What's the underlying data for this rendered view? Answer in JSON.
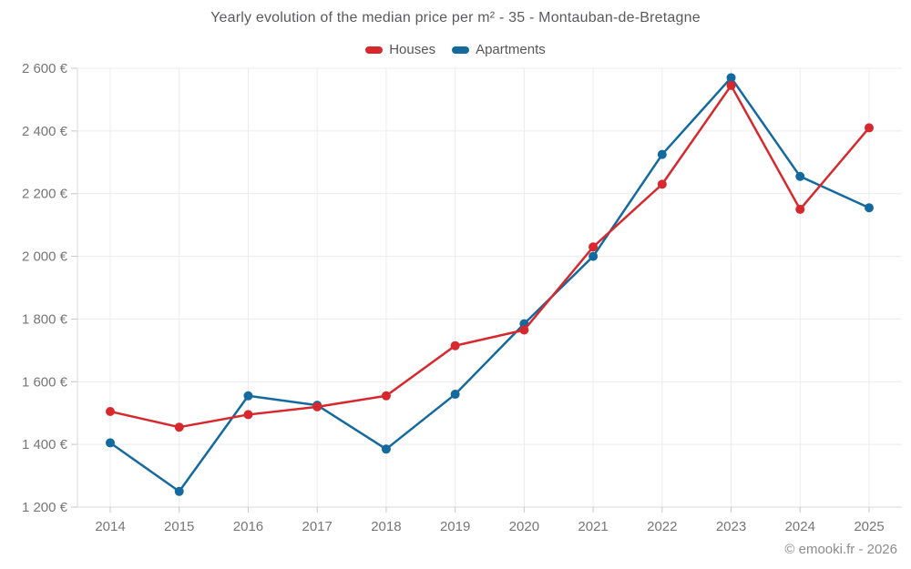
{
  "header": {
    "title": "Yearly evolution of the median price per m² - 35 - Montauban-de-Bretagne"
  },
  "footer": {
    "copyright": "© emooki.fr - 2026"
  },
  "colors": {
    "houses": "#d7282e",
    "apartments": "#146a9f",
    "grid": "#ececec",
    "axis": "#d8d8d8",
    "tick": "#c8c8c8",
    "label": "#767676",
    "title": "#5a5a5c",
    "footer_text": "#8c8c8c",
    "background": "#ffffff"
  },
  "chart_data": {
    "type": "line",
    "title": "Yearly evolution of the median price per m² - 35 - Montauban-de-Bretagne",
    "x": [
      2014,
      2015,
      2016,
      2017,
      2018,
      2019,
      2020,
      2021,
      2022,
      2023,
      2024,
      2025
    ],
    "series": [
      {
        "name": "Houses",
        "color_key": "houses",
        "values": [
          1505,
          1455,
          1495,
          1520,
          1555,
          1715,
          1765,
          2030,
          2230,
          2545,
          2150,
          2410
        ]
      },
      {
        "name": "Apartments",
        "color_key": "apartments",
        "values": [
          1405,
          1250,
          1555,
          1525,
          1385,
          1560,
          1785,
          2000,
          2325,
          2570,
          2255,
          2155
        ]
      }
    ],
    "xlabel": "",
    "ylabel": "",
    "ylim": [
      1200,
      2600
    ],
    "ytick_step": 200,
    "ytick_suffix": " €",
    "grid": true,
    "legend_position": "top",
    "marker_radius": 5,
    "line_width": 2.5
  }
}
